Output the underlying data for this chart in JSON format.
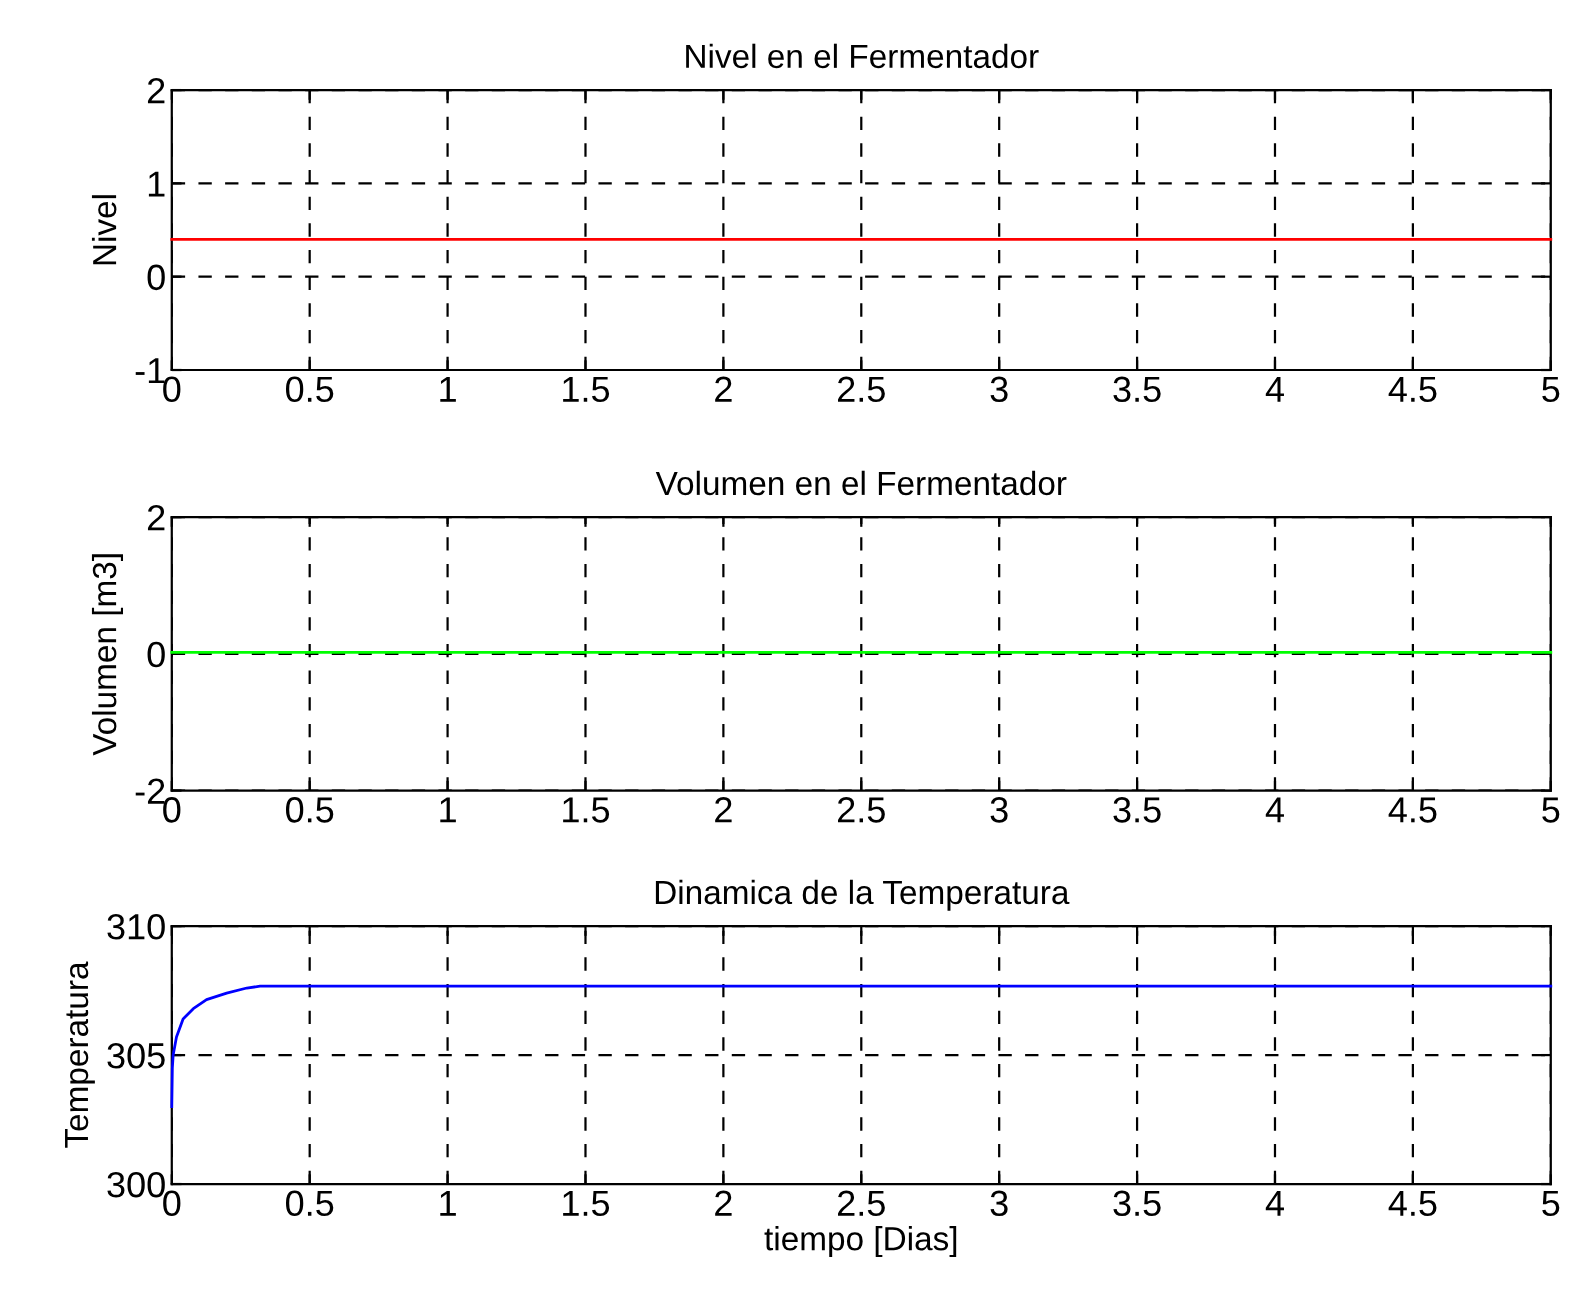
{
  "chart_data": [
    {
      "type": "line",
      "title": "Nivel en el Fermentador",
      "ylabel": "Nivel",
      "xlim": [
        0,
        5
      ],
      "ylim": [
        -1,
        2
      ],
      "xticks": [
        0,
        0.5,
        1,
        1.5,
        2,
        2.5,
        3,
        3.5,
        4,
        4.5,
        5
      ],
      "yticks": [
        -1,
        0,
        1,
        2
      ],
      "grid": true,
      "series": [
        {
          "color": "#ff0000",
          "x": [
            0,
            5
          ],
          "values": [
            0.4,
            0.4
          ]
        }
      ]
    },
    {
      "type": "line",
      "title": "Volumen en el Fermentador",
      "ylabel": "Volumen [m3]",
      "xlim": [
        0,
        5
      ],
      "ylim": [
        -2,
        2
      ],
      "xticks": [
        0,
        0.5,
        1,
        1.5,
        2,
        2.5,
        3,
        3.5,
        4,
        4.5,
        5
      ],
      "yticks": [
        -2,
        0,
        2
      ],
      "grid": true,
      "series": [
        {
          "color": "#00ff00",
          "x": [
            0,
            5
          ],
          "values": [
            0.02,
            0.02
          ]
        }
      ]
    },
    {
      "type": "line",
      "title": "Dinamica de la Temperatura",
      "xlabel": "tiempo [Dias]",
      "ylabel": "Temperatura",
      "xlim": [
        0,
        5
      ],
      "ylim": [
        300,
        310
      ],
      "xticks": [
        0,
        0.5,
        1,
        1.5,
        2,
        2.5,
        3,
        3.5,
        4,
        4.5,
        5
      ],
      "yticks": [
        300,
        305,
        310
      ],
      "grid": true,
      "series": [
        {
          "color": "#0000ff",
          "x": [
            0,
            0.002,
            0.005,
            0.017,
            0.041,
            0.078,
            0.126,
            0.199,
            0.272,
            0.32,
            5
          ],
          "values": [
            303.0,
            304.5,
            305.0,
            305.7,
            306.4,
            306.8,
            307.15,
            307.4,
            307.6,
            307.67,
            307.67
          ]
        }
      ]
    }
  ]
}
